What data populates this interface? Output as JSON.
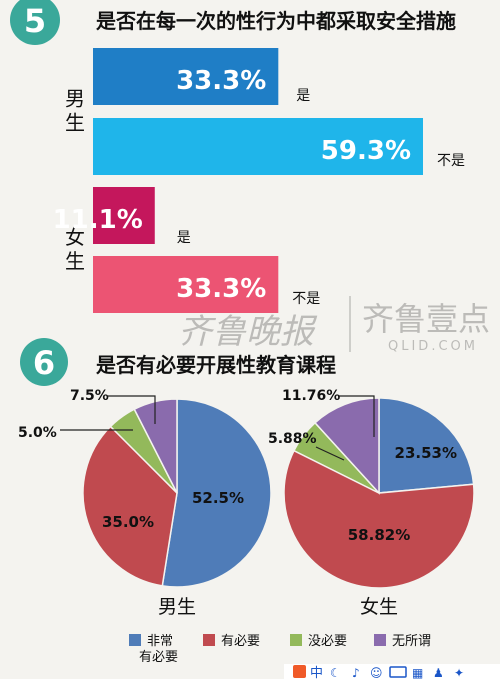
{
  "section5": {
    "number": "5",
    "title": "是否在每一次的性行为中都采取安全措施"
  },
  "section6": {
    "number": "6",
    "title": "是否有必要开展性教育课程"
  },
  "watermark": {
    "left": "齐鲁晚报",
    "right": "齐鲁壹点",
    "url": "QLID.COM"
  },
  "colors": {
    "badge": "#3aa89a",
    "male_yes": "#1f7ec6",
    "male_no": "#1fb5ea",
    "female_yes": "#c4175c",
    "female_no": "#ec5473",
    "pie_blue": "#4f7cb8",
    "pie_red": "#c04a4f",
    "pie_green": "#93b95b",
    "pie_purple": "#8a6bad"
  },
  "legend": [
    "非常\n有必要",
    "有必要",
    "没必要",
    "无所谓"
  ],
  "chart_data": [
    {
      "type": "bar",
      "groups": [
        {
          "name": "男生",
          "bars": [
            {
              "category": "是",
              "value": 33.3,
              "label": "33.3%"
            },
            {
              "category": "不是",
              "value": 59.3,
              "label": "59.3%"
            }
          ]
        },
        {
          "name": "女生",
          "bars": [
            {
              "category": "是",
              "value": 11.1,
              "label": "11.1%"
            },
            {
              "category": "不是",
              "value": 33.3,
              "label": "33.3%"
            }
          ]
        }
      ]
    },
    {
      "type": "pie",
      "xlabel": "男生",
      "slices": [
        {
          "category": "非常有必要",
          "value": 52.5,
          "label": "52.5%"
        },
        {
          "category": "有必要",
          "value": 35.0,
          "label": "35.0%"
        },
        {
          "category": "没必要",
          "value": 5.0,
          "label": "5.0%"
        },
        {
          "category": "无所谓",
          "value": 7.5,
          "label": "7.5%"
        }
      ]
    },
    {
      "type": "pie",
      "xlabel": "女生",
      "slices": [
        {
          "category": "非常有必要",
          "value": 23.53,
          "label": "23.53%"
        },
        {
          "category": "有必要",
          "value": 58.82,
          "label": "58.82%"
        },
        {
          "category": "没必要",
          "value": 5.88,
          "label": "5.88%"
        },
        {
          "category": "无所谓",
          "value": 11.76,
          "label": "11.76%"
        }
      ]
    }
  ],
  "taskbar": {
    "items": [
      "中"
    ]
  }
}
